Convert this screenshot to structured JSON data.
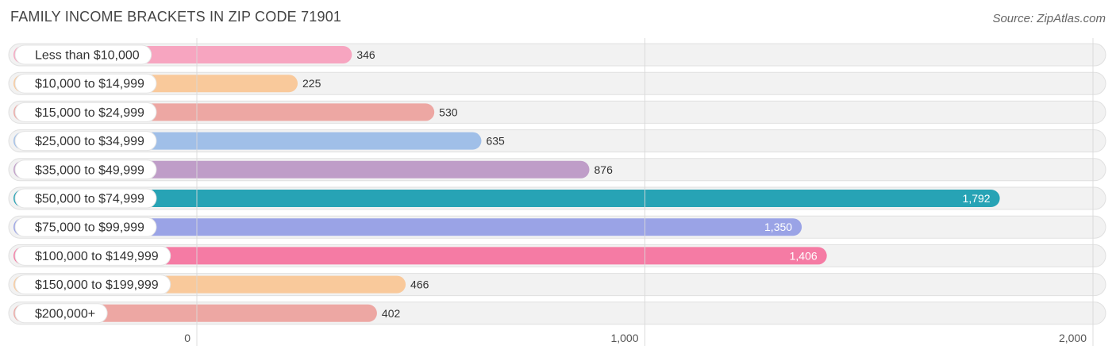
{
  "chart_data": {
    "type": "bar",
    "orientation": "horizontal",
    "title": "FAMILY INCOME BRACKETS IN ZIP CODE 71901",
    "source": "Source: ZipAtlas.com",
    "categories": [
      "Less than $10,000",
      "$10,000 to $14,999",
      "$15,000 to $24,999",
      "$25,000 to $34,999",
      "$35,000 to $49,999",
      "$50,000 to $74,999",
      "$75,000 to $99,999",
      "$100,000 to $149,999",
      "$150,000 to $199,999",
      "$200,000+"
    ],
    "values": [
      346,
      225,
      530,
      635,
      876,
      1792,
      1350,
      1406,
      466,
      402
    ],
    "value_labels": [
      "346",
      "225",
      "530",
      "635",
      "876",
      "1,792",
      "1,350",
      "1,406",
      "466",
      "402"
    ],
    "colors": [
      "#f7a5c0",
      "#f9c99b",
      "#eda7a3",
      "#a0bfe8",
      "#bf9dc8",
      "#27a3b5",
      "#9aa3e6",
      "#f57ba4",
      "#f9c99b",
      "#eda7a3"
    ],
    "highlight_index": 5,
    "xlim": [
      0,
      2000
    ],
    "xticks": [
      0,
      1000,
      2000
    ],
    "xtick_labels": [
      "0",
      "1,000",
      "2,000"
    ],
    "xlabel": "",
    "ylabel": "",
    "grid": true
  }
}
